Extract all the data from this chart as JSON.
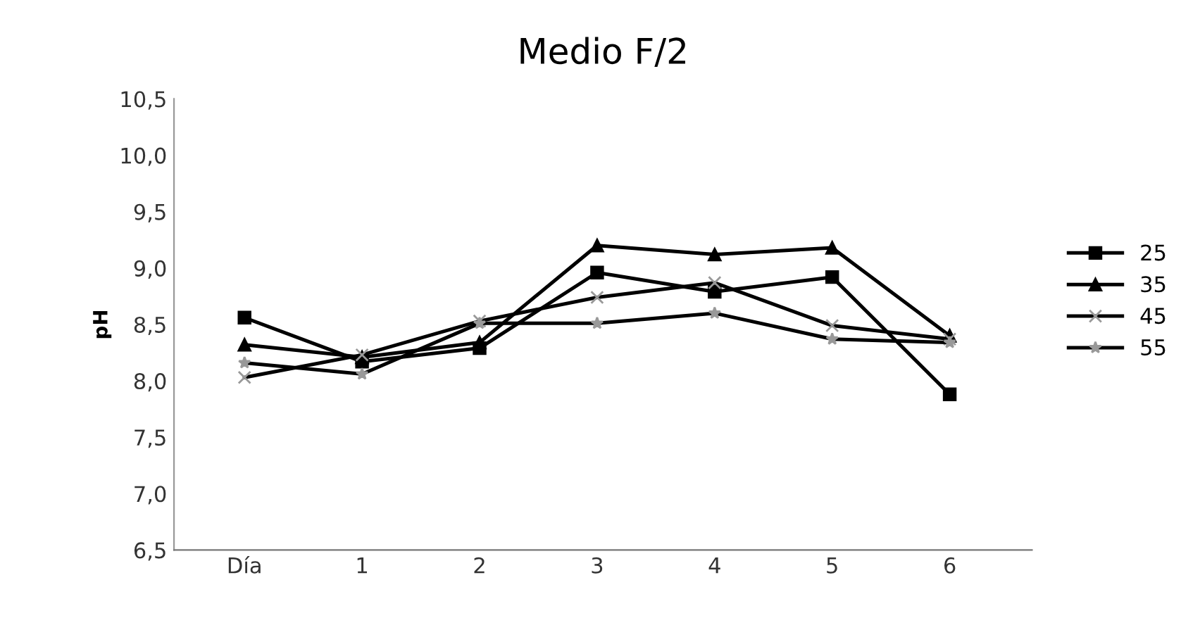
{
  "chart_data": {
    "type": "line",
    "title": "Medio F/2",
    "ylabel": "pH",
    "categories": [
      "Día",
      "1",
      "2",
      "3",
      "4",
      "5",
      "6"
    ],
    "ylim": [
      6.5,
      10.5
    ],
    "yticks": [
      {
        "value": 6.5,
        "label": "6,5"
      },
      {
        "value": 7.0,
        "label": "7,0"
      },
      {
        "value": 7.5,
        "label": "7,5"
      },
      {
        "value": 8.0,
        "label": "8,0"
      },
      {
        "value": 8.5,
        "label": "8,5"
      },
      {
        "value": 9.0,
        "label": "9,0"
      },
      {
        "value": 9.5,
        "label": "9,5"
      },
      {
        "value": 10.0,
        "label": "10,0"
      },
      {
        "value": 10.5,
        "label": "10,5"
      }
    ],
    "grid": false,
    "legend": "right",
    "line_style": "solid",
    "series": [
      {
        "name": "25",
        "color": "#000000",
        "marker": "square",
        "values": [
          8.56,
          8.17,
          8.29,
          8.96,
          8.79,
          8.92,
          7.88
        ]
      },
      {
        "name": "35",
        "color": "#000000",
        "marker": "triangle",
        "values": [
          8.32,
          8.21,
          8.34,
          9.2,
          9.12,
          9.18,
          8.4
        ]
      },
      {
        "name": "45",
        "color": "#000000",
        "marker": "cross",
        "values": [
          8.03,
          8.23,
          8.53,
          8.74,
          8.87,
          8.49,
          8.37
        ]
      },
      {
        "name": "55",
        "color": "#000000",
        "marker": "star",
        "values": [
          8.16,
          8.06,
          8.51,
          8.51,
          8.6,
          8.37,
          8.34
        ]
      }
    ]
  }
}
